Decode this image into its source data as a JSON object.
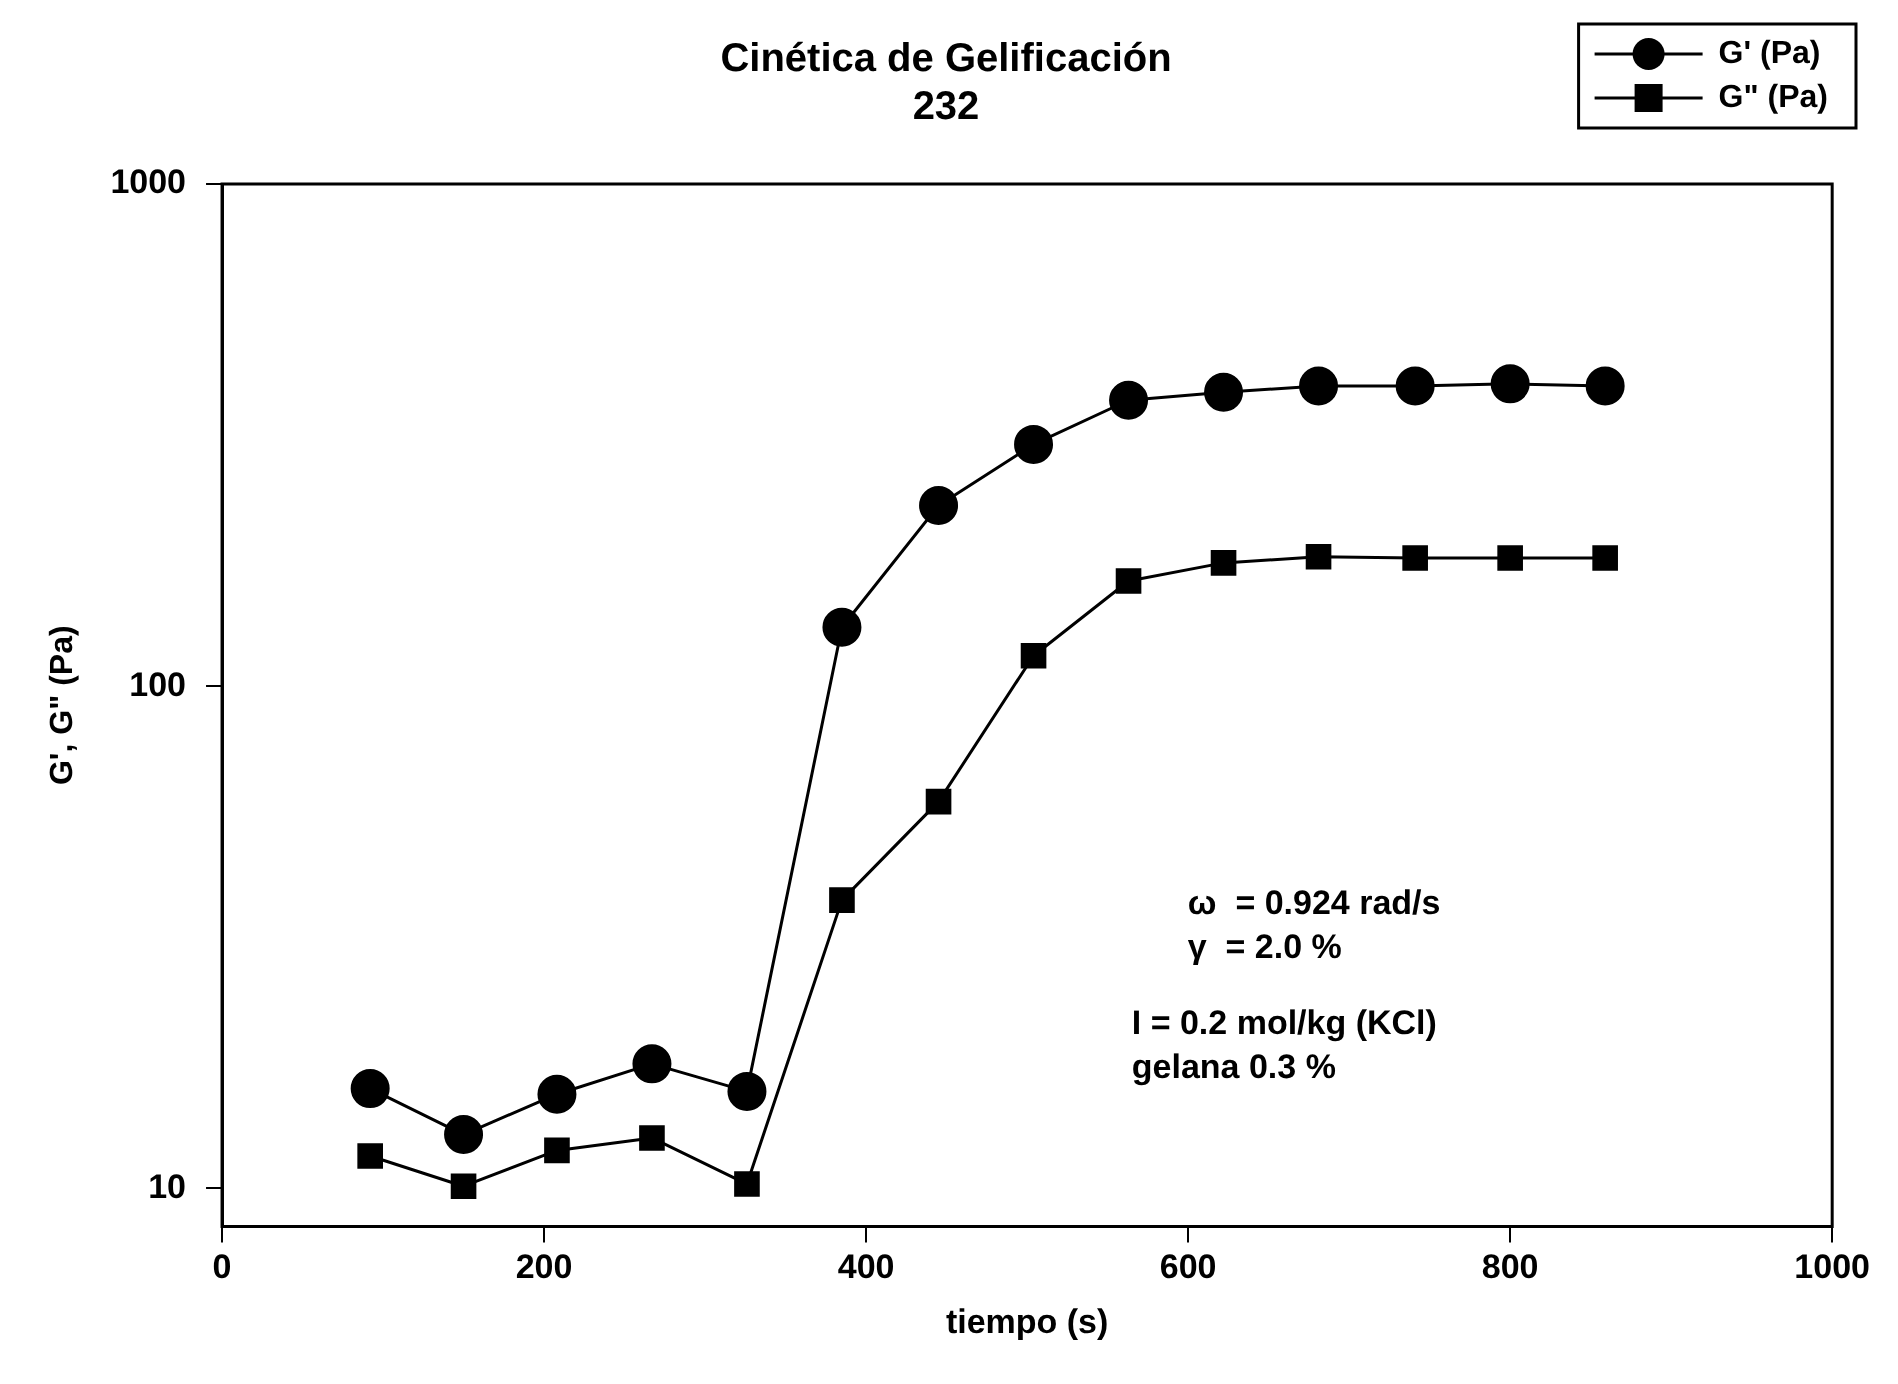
{
  "chart_data": {
    "type": "line",
    "title": "Cinética de Gelificación",
    "subtitle": "232",
    "xlabel": "tiempo (s)",
    "ylabel": "G', G\" (Pa)",
    "x": [
      92,
      150,
      208,
      267,
      326,
      385,
      445,
      504,
      563,
      622,
      681,
      741,
      800,
      859
    ],
    "series": [
      {
        "name": "G' (Pa)",
        "color": "#000000",
        "marker": "circle",
        "values": [
          15.8,
          12.8,
          15.4,
          17.7,
          15.6,
          131,
          229,
          303,
          371,
          385,
          396,
          396,
          400,
          396
        ]
      },
      {
        "name": "G\" (Pa)",
        "color": "#000000",
        "marker": "square",
        "values": [
          11.6,
          10.1,
          11.9,
          12.6,
          10.2,
          37.5,
          58.9,
          115,
          162,
          176,
          181,
          180,
          180,
          180
        ]
      }
    ],
    "xlim": [
      0,
      1000
    ],
    "xticks": [
      0,
      200,
      400,
      600,
      800,
      1000
    ],
    "ylim": [
      8.4,
      1000
    ],
    "yticks": [
      10,
      100,
      1000
    ],
    "log": "y",
    "grid": false,
    "legend": "top right",
    "line_style": "solid",
    "annotations": [
      "ω  = 0.924 rad/s",
      "γ  = 2.0 %",
      "I = 0.2 mol/kg (KCl)",
      "gelana 0.3 %"
    ]
  }
}
